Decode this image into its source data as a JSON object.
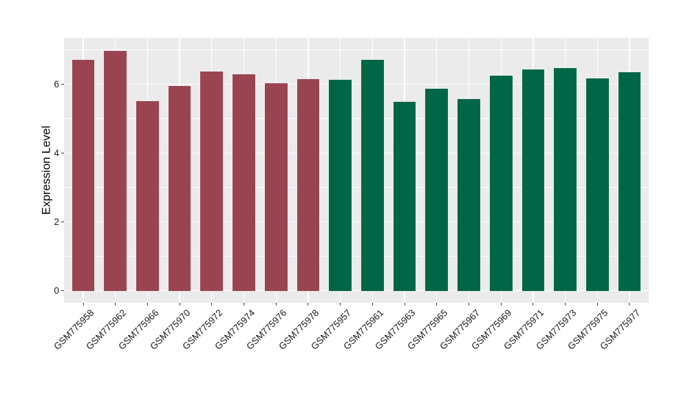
{
  "figure": {
    "background": "#FFFFFF",
    "panel_background": "#EBEBEB",
    "gridline_color": "#FFFFFF",
    "tick_mark_color": "#333333",
    "axis_text_color": "#1A1A1A",
    "axis_title_color": "#000000"
  },
  "chart_data": {
    "type": "bar",
    "title": "",
    "xlabel": "",
    "ylabel": "Expression Level",
    "categories": [
      "GSM775958",
      "GSM775962",
      "GSM775966",
      "GSM775970",
      "GSM775972",
      "GSM775974",
      "GSM775976",
      "GSM775978",
      "GSM775957",
      "GSM775961",
      "GSM775963",
      "GSM775965",
      "GSM775967",
      "GSM775969",
      "GSM775971",
      "GSM775973",
      "GSM775975",
      "GSM775977"
    ],
    "values": [
      6.72,
      6.97,
      5.52,
      5.96,
      6.37,
      6.3,
      6.03,
      6.15,
      6.14,
      6.72,
      5.49,
      5.88,
      5.57,
      6.25,
      6.44,
      6.48,
      6.17,
      6.35
    ],
    "bar_colors": [
      "#9A4451",
      "#9A4451",
      "#9A4451",
      "#9A4451",
      "#9A4451",
      "#9A4451",
      "#9A4451",
      "#9A4451",
      "#006647",
      "#006647",
      "#006647",
      "#006647",
      "#006647",
      "#006647",
      "#006647",
      "#006647",
      "#006647",
      "#006647"
    ],
    "group_colors": {
      "group1": "#9A4451",
      "group2": "#006647"
    },
    "group_sizes": {
      "group1": 8,
      "group2": 10
    },
    "yticks": [
      0,
      2,
      4,
      6
    ],
    "minor_gridlines": [
      1,
      3,
      5,
      7
    ],
    "ylim": [
      -0.35,
      7.35
    ],
    "bar_width_fraction": 0.7,
    "x_tick_rotation": 45,
    "grid": true,
    "legend_position": "none"
  }
}
